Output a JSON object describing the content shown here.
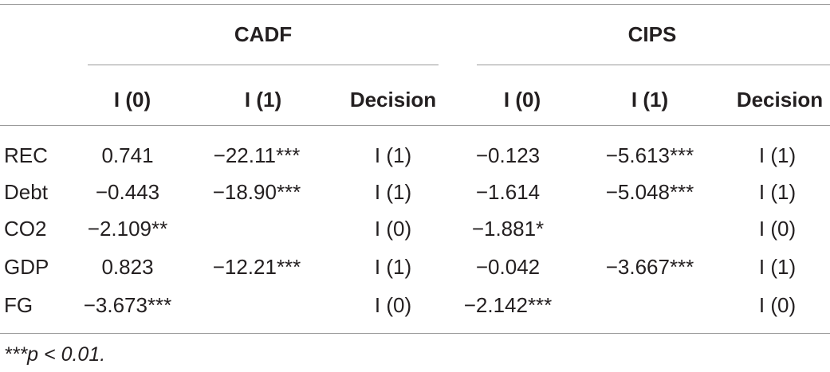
{
  "header": {
    "group1": "CADF",
    "group2": "CIPS"
  },
  "subheader": {
    "cadf_i0": "I (0)",
    "cadf_i1": "I (1)",
    "cadf_decision": "Decision",
    "cips_i0": "I (0)",
    "cips_i1": "I (1)",
    "cips_decision": "Decision"
  },
  "rows": [
    {
      "label": "REC",
      "cadf_i0": "0.741",
      "cadf_i1": "−22.11***",
      "cadf_decision": "I (1)",
      "cips_i0": "−0.123",
      "cips_i1": "−5.613***",
      "cips_decision": "I (1)"
    },
    {
      "label": "Debt",
      "cadf_i0": "−0.443",
      "cadf_i1": "−18.90***",
      "cadf_decision": "I (1)",
      "cips_i0": "−1.614",
      "cips_i1": "−5.048***",
      "cips_decision": "I (1)"
    },
    {
      "label": "CO2",
      "cadf_i0": "−2.109**",
      "cadf_i1": "",
      "cadf_decision": "I (0)",
      "cips_i0": "−1.881*",
      "cips_i1": "",
      "cips_decision": "I (0)"
    },
    {
      "label": "GDP",
      "cadf_i0": "0.823",
      "cadf_i1": "−12.21***",
      "cadf_decision": "I (1)",
      "cips_i0": "−0.042",
      "cips_i1": "−3.667***",
      "cips_decision": "I (1)"
    },
    {
      "label": "FG",
      "cadf_i0": "−3.673***",
      "cadf_i1": "",
      "cadf_decision": "I (0)",
      "cips_i0": "−2.142***",
      "cips_i1": "",
      "cips_decision": "I (0)"
    }
  ],
  "footnote": "***p < 0.01."
}
